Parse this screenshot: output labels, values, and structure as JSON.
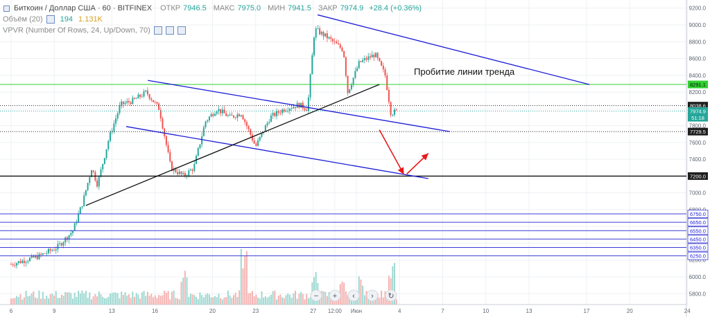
{
  "header": {
    "symbol_title": "Биткоин / Доллар США · 60 · BITFINEX",
    "open_label": "ОТКР",
    "open_value": "7946.5",
    "high_label": "МАКС",
    "high_value": "7975.0",
    "low_label": "МИН",
    "low_value": "7941.5",
    "close_label": "ЗАКР",
    "close_value": "7974.9",
    "change_value": "+28.4 (+0.36%)",
    "volume_label": "Объём (20)",
    "volume_value": "194",
    "volume_ma_value": "1.131K",
    "vpvr_label": "VPVR (Number Of Rows, 24, Up/Down, 70)"
  },
  "annotation": "Пробитие линии тренда",
  "colors": {
    "up": "#26a69a",
    "down": "#ef5350",
    "trend_blue": "#1b1bd6",
    "green_line": "#2fd12f",
    "arrow": "#e8191a",
    "hline_blue": "#3b3bd8"
  },
  "toolbar": {
    "minus": "−",
    "plus": "+",
    "prev": "‹",
    "next": "›",
    "reset": "↻"
  },
  "chart_data": {
    "type": "candlestick",
    "symbol": "BTCUSD",
    "ylim": [
      5700,
      9300
    ],
    "y_ticks": [
      "9200.0",
      "9000.0",
      "8800.0",
      "8600.0",
      "8400.0",
      "8200.0",
      "8000.0",
      "7800.0",
      "7600.0",
      "7400.0",
      "7200.0",
      "7000.0",
      "6800.0",
      "6600.0",
      "6400.0",
      "6200.0",
      "6000.0",
      "5800.0"
    ],
    "x_ticks": [
      "6",
      "9",
      "13",
      "16",
      "20",
      "23",
      "27",
      "12:00",
      "Июн",
      "4",
      "7",
      "10",
      "13",
      "17",
      "20",
      "24"
    ],
    "x_tick_pos": [
      0,
      3,
      7,
      10,
      14,
      17,
      21,
      22.5,
      24,
      27,
      30,
      33,
      36,
      40,
      43,
      47
    ],
    "price_keypoints": [
      [
        0,
        6150
      ],
      [
        2,
        6250
      ],
      [
        3.2,
        6350
      ],
      [
        4.3,
        6550
      ],
      [
        5.0,
        6900
      ],
      [
        5.6,
        7300
      ],
      [
        6.0,
        7100
      ],
      [
        6.8,
        7650
      ],
      [
        7.6,
        8050
      ],
      [
        8.5,
        8100
      ],
      [
        9.4,
        8200
      ],
      [
        10.3,
        8000
      ],
      [
        11.1,
        7300
      ],
      [
        12.0,
        7200
      ],
      [
        12.7,
        7300
      ],
      [
        13.5,
        7850
      ],
      [
        14.3,
        8000
      ],
      [
        15.2,
        7900
      ],
      [
        16.0,
        7950
      ],
      [
        17.0,
        7550
      ],
      [
        18.0,
        7900
      ],
      [
        19.0,
        8000
      ],
      [
        20.0,
        8050
      ],
      [
        20.6,
        8000
      ],
      [
        21.1,
        8950
      ],
      [
        22.0,
        8850
      ],
      [
        23.1,
        8700
      ],
      [
        23.4,
        8200
      ],
      [
        24.2,
        8550
      ],
      [
        25.3,
        8650
      ],
      [
        26.0,
        8400
      ],
      [
        26.4,
        7950
      ],
      [
        26.9,
        7975
      ]
    ],
    "volume_peaks": [
      [
        12.0,
        0.6
      ],
      [
        16.2,
        0.9
      ],
      [
        21.1,
        0.55
      ],
      [
        23.0,
        0.5
      ],
      [
        24.3,
        0.5
      ],
      [
        26.5,
        0.7
      ]
    ],
    "price_labels": [
      {
        "value": 8291.1,
        "text": "8291.1",
        "style": "green"
      },
      {
        "value": 8038.6,
        "text": "8038.6",
        "style": "dark"
      },
      {
        "value": 7974.9,
        "text": "7974.9",
        "style": "teal"
      },
      {
        "value": 7895,
        "text": "51:18",
        "style": "teal"
      },
      {
        "value": 7729.5,
        "text": "7729.5",
        "style": "dark"
      },
      {
        "value": 7200.0,
        "text": "7200.0",
        "style": "dark"
      },
      {
        "value": 6750.0,
        "text": "6750.0",
        "style": "blue"
      },
      {
        "value": 6650.0,
        "text": "6650.0",
        "style": "blue"
      },
      {
        "value": 6550.0,
        "text": "6550.0",
        "style": "blue"
      },
      {
        "value": 6450.0,
        "text": "6450.0",
        "style": "blue"
      },
      {
        "value": 6350.0,
        "text": "6350.0",
        "style": "blue"
      },
      {
        "value": 6250.0,
        "text": "6250.0",
        "style": "blue"
      }
    ],
    "horizontal_lines": [
      {
        "value": 8291.1,
        "style": "green"
      },
      {
        "value": 8038.6,
        "style": "dotted"
      },
      {
        "value": 7974.9,
        "style": "teal-dotted"
      },
      {
        "value": 7729.5,
        "style": "dotted"
      },
      {
        "value": 7200.0,
        "style": "black"
      },
      {
        "value": 6750.0,
        "style": "blue"
      },
      {
        "value": 6650.0,
        "style": "blue"
      },
      {
        "value": 6550.0,
        "style": "blue"
      },
      {
        "value": 6450.0,
        "style": "blue"
      },
      {
        "value": 6350.0,
        "style": "blue"
      },
      {
        "value": 6250.0,
        "style": "blue"
      }
    ],
    "trend_lines": [
      {
        "name": "upper-channel-top",
        "x1": 21.3,
        "y1": 9120,
        "x2": 40.2,
        "y2": 8290,
        "style": "blue"
      },
      {
        "name": "middle-channel-line",
        "x1": 9.5,
        "y1": 8340,
        "x2": 30.5,
        "y2": 7730,
        "style": "blue"
      },
      {
        "name": "lower-channel-line",
        "x1": 8.0,
        "y1": 7790,
        "x2": 29.0,
        "y2": 7170,
        "style": "blue"
      },
      {
        "name": "uptrend-support",
        "x1": 5.2,
        "y1": 6850,
        "x2": 25.6,
        "y2": 8291,
        "style": "black"
      }
    ],
    "arrows": [
      {
        "name": "down-arrow",
        "x1": 25.6,
        "y1": 7750,
        "x2": 27.3,
        "y2": 7220
      },
      {
        "name": "up-arrow",
        "x1": 27.5,
        "y1": 7225,
        "x2": 29.0,
        "y2": 7470
      }
    ]
  }
}
